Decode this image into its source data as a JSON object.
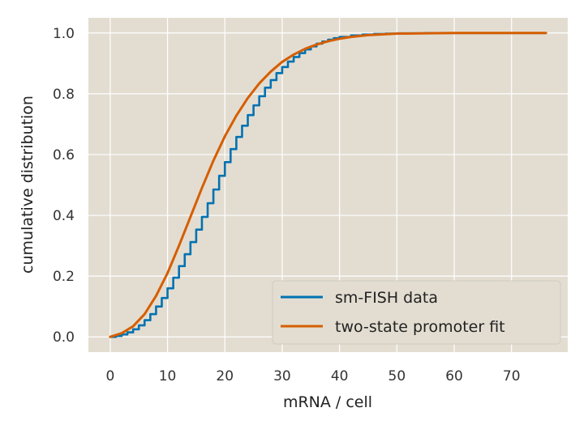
{
  "chart_data": {
    "type": "line",
    "xlabel": "mRNA / cell",
    "ylabel": "cumulative distribution",
    "xlim": [
      -3.8,
      79.8
    ],
    "ylim": [
      -0.05,
      1.05
    ],
    "xticks": [
      0,
      10,
      20,
      30,
      40,
      50,
      60,
      70
    ],
    "yticks": [
      "0.0",
      "0.2",
      "0.4",
      "0.6",
      "0.8",
      "1.0"
    ],
    "grid": true,
    "legend_position": "lower-right",
    "series": [
      {
        "name": "sm-FISH data",
        "color": "#0072B2",
        "style": "step",
        "x": [
          0,
          1,
          2,
          3,
          4,
          5,
          6,
          7,
          8,
          9,
          10,
          11,
          12,
          13,
          14,
          15,
          16,
          17,
          18,
          19,
          20,
          21,
          22,
          23,
          24,
          25,
          26,
          27,
          28,
          29,
          30,
          31,
          32,
          33,
          34,
          35,
          36,
          37,
          38,
          39,
          40,
          42,
          44,
          46,
          48,
          50,
          55,
          60,
          65,
          70,
          76
        ],
        "y": [
          0.0,
          0.003,
          0.008,
          0.015,
          0.025,
          0.038,
          0.055,
          0.075,
          0.1,
          0.128,
          0.16,
          0.195,
          0.233,
          0.272,
          0.312,
          0.353,
          0.395,
          0.44,
          0.485,
          0.53,
          0.575,
          0.618,
          0.658,
          0.695,
          0.73,
          0.762,
          0.792,
          0.82,
          0.845,
          0.868,
          0.888,
          0.906,
          0.921,
          0.934,
          0.946,
          0.956,
          0.965,
          0.972,
          0.978,
          0.983,
          0.987,
          0.992,
          0.995,
          0.997,
          0.998,
          0.999,
          1.0,
          1.0,
          1.0,
          1.0,
          1.0
        ]
      },
      {
        "name": "two-state promoter fit",
        "color": "#D55E00",
        "style": "line",
        "x": [
          0,
          2,
          4,
          6,
          8,
          10,
          12,
          14,
          16,
          18,
          20,
          22,
          24,
          26,
          28,
          30,
          32,
          34,
          36,
          38,
          40,
          42,
          45,
          50,
          55,
          60,
          65,
          70,
          76
        ],
        "y": [
          0.0,
          0.012,
          0.035,
          0.075,
          0.135,
          0.21,
          0.3,
          0.395,
          0.49,
          0.58,
          0.66,
          0.728,
          0.786,
          0.834,
          0.873,
          0.905,
          0.929,
          0.948,
          0.962,
          0.973,
          0.981,
          0.987,
          0.993,
          0.998,
          0.999,
          1.0,
          1.0,
          1.0,
          1.0
        ]
      }
    ]
  }
}
